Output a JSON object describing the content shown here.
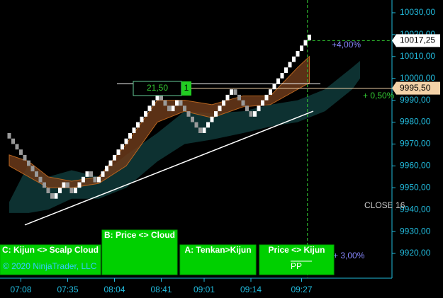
{
  "chart_data": {
    "type": "renko",
    "closes": [
      9972.5,
      9970,
      9967.5,
      9965,
      9962.5,
      9960,
      9957.5,
      9955,
      9952.5,
      9950,
      9947.5,
      9945,
      9947.5,
      9950,
      9952.5,
      9950,
      9947.5,
      9950,
      9952.5,
      9955,
      9957.5,
      9955,
      9952.5,
      9955,
      9957.5,
      9960,
      9962.5,
      9965,
      9967.5,
      9970,
      9972.5,
      9975,
      9977.5,
      9980,
      9982.5,
      9985,
      9987.5,
      9990,
      9992.5,
      9990,
      9987.5,
      9985,
      9987.5,
      9990,
      9987.5,
      9985,
      9982.5,
      9980,
      9977.5,
      9975,
      9977.5,
      9980,
      9982.5,
      9985,
      9987.5,
      9990,
      9992.5,
      9995,
      9992.5,
      9990,
      9987.5,
      9985,
      9982.5,
      9985,
      9987.5,
      9990,
      9992.5,
      9995,
      9997.5,
      10000,
      10002.5,
      10005,
      10007.5,
      10010,
      10012.5,
      10015,
      10017.5,
      10020
    ],
    "brick_size": 2.5,
    "up_color": "#ffffff",
    "down_color": "#9a9a9a",
    "cloud": {
      "color": "#0f3a3a",
      "index": [
        0,
        5,
        10,
        16,
        23,
        30,
        38,
        45,
        52,
        60,
        67,
        74,
        81,
        88,
        90
      ],
      "top": [
        9943.5,
        9961,
        9955,
        9958,
        9955,
        9965,
        9975,
        9985,
        9984,
        9985,
        9988,
        9990,
        9995,
        10005,
        10008
      ],
      "bottom": [
        9938.5,
        9938.5,
        9940,
        9945,
        9945,
        9950,
        9962,
        9970,
        9972,
        9975,
        9978,
        9980,
        9985,
        9995,
        10000
      ]
    },
    "band": {
      "color": "#6b3a1a",
      "edge": "#b8651f",
      "index": [
        0,
        5,
        10,
        16,
        23,
        30,
        38,
        45,
        52,
        60,
        67,
        74,
        77
      ],
      "top": [
        9965,
        9962,
        9955,
        9953,
        9955,
        9970,
        9990,
        9990,
        9988,
        9992,
        9992,
        10005,
        10010
      ],
      "bottom": [
        9960,
        9955,
        9950,
        9950,
        9952,
        9960,
        9980,
        9985,
        9982,
        9987,
        9988,
        9995,
        9998
      ]
    },
    "trendline": {
      "index": [
        4,
        78
      ],
      "values": [
        9933,
        9985
      ]
    },
    "level_line": 9997.5,
    "ylim": [
      9916,
      10034
    ],
    "yticks": [
      {
        "value": 9920,
        "label": "9920,00"
      },
      {
        "value": 9930,
        "label": "9930,00"
      },
      {
        "value": 9940,
        "label": "9940,00"
      },
      {
        "value": 9950,
        "label": "9950,00"
      },
      {
        "value": 9960,
        "label": "9960,00"
      },
      {
        "value": 9970,
        "label": "9970,00"
      },
      {
        "value": 9980,
        "label": "9980,00"
      },
      {
        "value": 9990,
        "label": "9990,00"
      },
      {
        "value": 10000,
        "label": "10000,00"
      },
      {
        "value": 10010,
        "label": "10010,00"
      },
      {
        "value": 10020,
        "label": "10020,00"
      },
      {
        "value": 10030,
        "label": "10030,00"
      }
    ],
    "x_labels": [
      {
        "index": 3,
        "label": "07:08"
      },
      {
        "index": 15,
        "label": "07:35"
      },
      {
        "index": 27,
        "label": "08:04"
      },
      {
        "index": 39,
        "label": "08:41"
      },
      {
        "index": 50,
        "label": "09:01"
      },
      {
        "index": 62,
        "label": "09:14"
      },
      {
        "index": 75,
        "label": "09:27"
      }
    ],
    "last_price": {
      "value": 10017.25,
      "label": "10017,25"
    },
    "marker_price": {
      "value": 9995.5,
      "label": "9995,50"
    },
    "cursor_index": 76.5,
    "annotations": {
      "box": "21,50",
      "count": "1",
      "pct_top": "+4,00%",
      "pct_mid": "+ 0,50%",
      "pct_low": "+ 3,00%",
      "close": "CLOSE 16"
    },
    "buttons": [
      "C: Kijun <> Scalp Cloud",
      "B: Price <> Cloud",
      "A: Tenkan>Kijun",
      "Price <> Kijun"
    ],
    "pp": "PP",
    "copyright": "© 2020 NinjaTrader, LLC"
  }
}
